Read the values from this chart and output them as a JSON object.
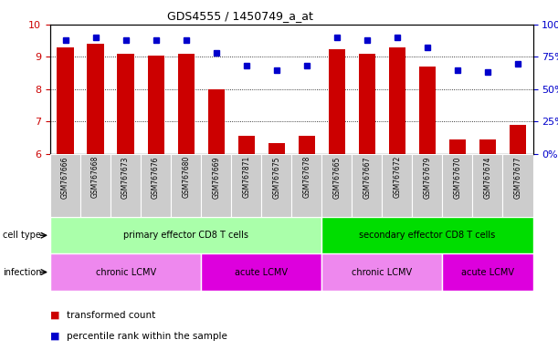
{
  "title": "GDS4555 / 1450749_a_at",
  "samples": [
    "GSM767666",
    "GSM767668",
    "GSM767673",
    "GSM767676",
    "GSM767680",
    "GSM767669",
    "GSM767871",
    "GSM767675",
    "GSM767678",
    "GSM767665",
    "GSM767667",
    "GSM767672",
    "GSM767679",
    "GSM767670",
    "GSM767674",
    "GSM767677"
  ],
  "red_values": [
    9.3,
    9.4,
    9.1,
    9.05,
    9.1,
    8.0,
    6.55,
    6.35,
    6.55,
    9.25,
    9.1,
    9.3,
    8.7,
    6.45,
    6.45,
    6.9
  ],
  "blue_values_pct": [
    88,
    90,
    88,
    88,
    88,
    78,
    68,
    65,
    68,
    90,
    88,
    90,
    82,
    65,
    63,
    70
  ],
  "ylim_left": [
    6,
    10
  ],
  "ylim_right": [
    0,
    100
  ],
  "yticks_left": [
    6,
    7,
    8,
    9,
    10
  ],
  "yticks_right": [
    0,
    25,
    50,
    75,
    100
  ],
  "ytick_labels_right": [
    "0%",
    "25%",
    "50%",
    "75%",
    "100%"
  ],
  "cell_type_groups": [
    {
      "label": "primary effector CD8 T cells",
      "start": 0,
      "end": 9,
      "color": "#aaffaa"
    },
    {
      "label": "secondary effector CD8 T cells",
      "start": 9,
      "end": 16,
      "color": "#00dd00"
    }
  ],
  "infection_groups": [
    {
      "label": "chronic LCMV",
      "start": 0,
      "end": 5,
      "color": "#ee88ee"
    },
    {
      "label": "acute LCMV",
      "start": 5,
      "end": 9,
      "color": "#dd00dd"
    },
    {
      "label": "chronic LCMV",
      "start": 9,
      "end": 13,
      "color": "#ee88ee"
    },
    {
      "label": "acute LCMV",
      "start": 13,
      "end": 16,
      "color": "#dd00dd"
    }
  ],
  "bar_color": "#cc0000",
  "dot_color": "#0000cc",
  "bg_color": "#ffffff",
  "tick_label_color_left": "#cc0000",
  "tick_label_color_right": "#0000cc",
  "sample_box_color": "#cccccc",
  "cell_type_label_color": "#000000",
  "infection_label_color": "#000000"
}
